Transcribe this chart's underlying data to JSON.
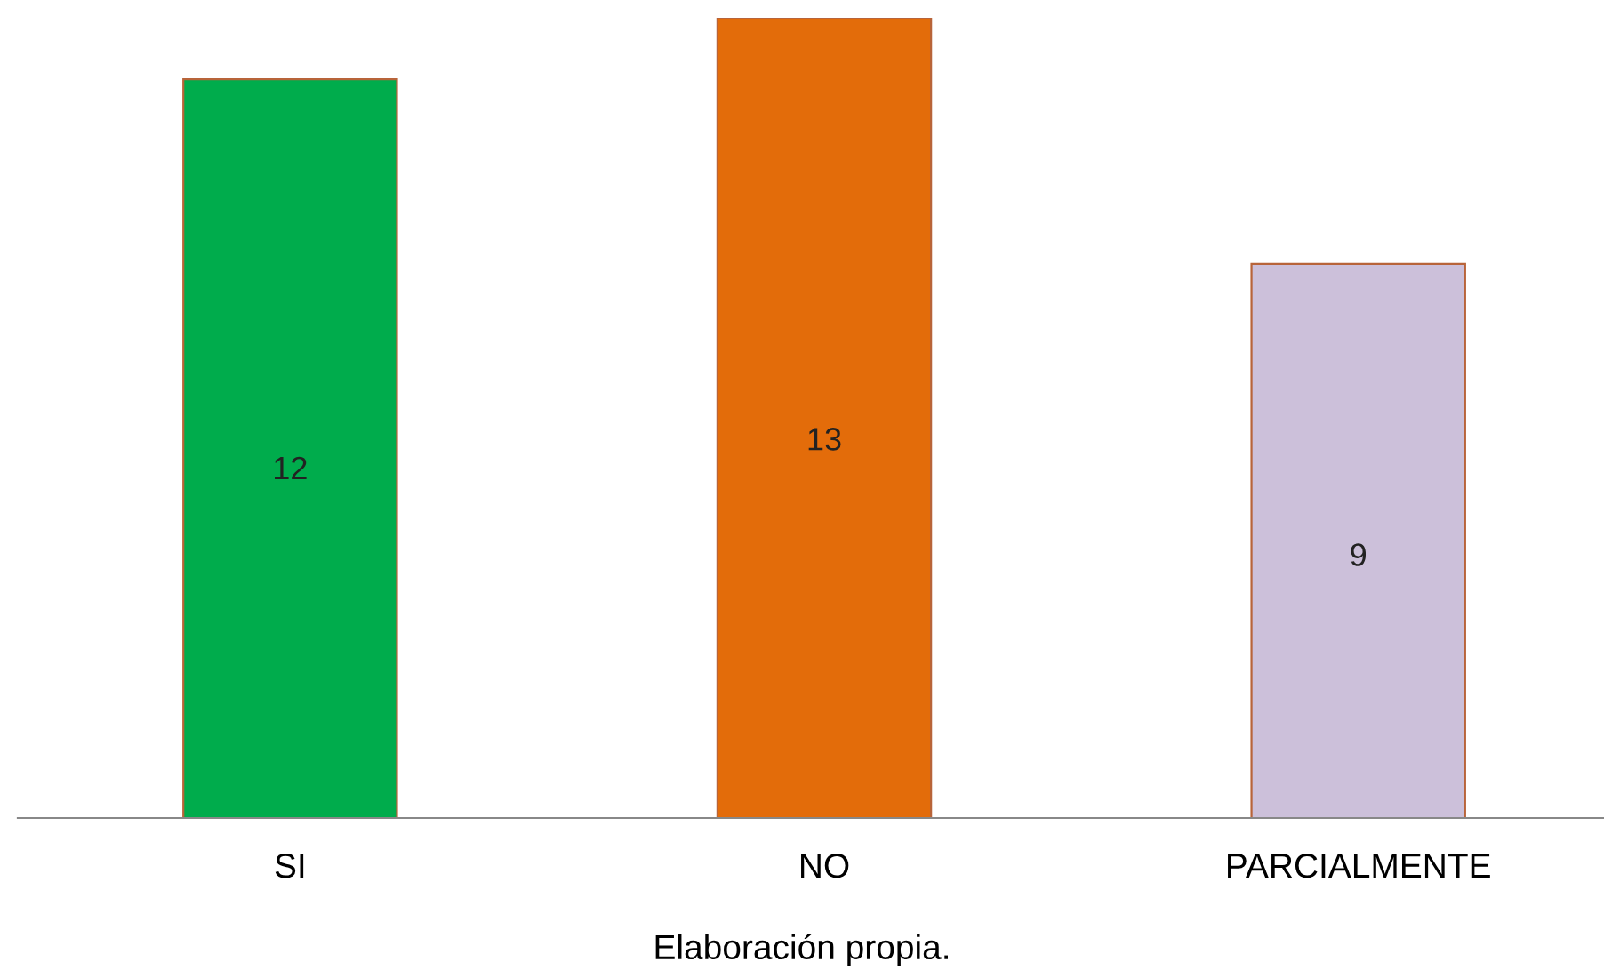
{
  "chart_data": {
    "type": "bar",
    "categories": [
      "SI",
      "NO",
      "PARCIALMENTE"
    ],
    "values": [
      12,
      13,
      9
    ],
    "colors": [
      "#00ac4c",
      "#e36c0a",
      "#ccc0da"
    ],
    "ylim": [
      0,
      13
    ],
    "data_labels": true,
    "grid": false,
    "legend": false,
    "annotations": [
      "Elaboración propia."
    ]
  }
}
